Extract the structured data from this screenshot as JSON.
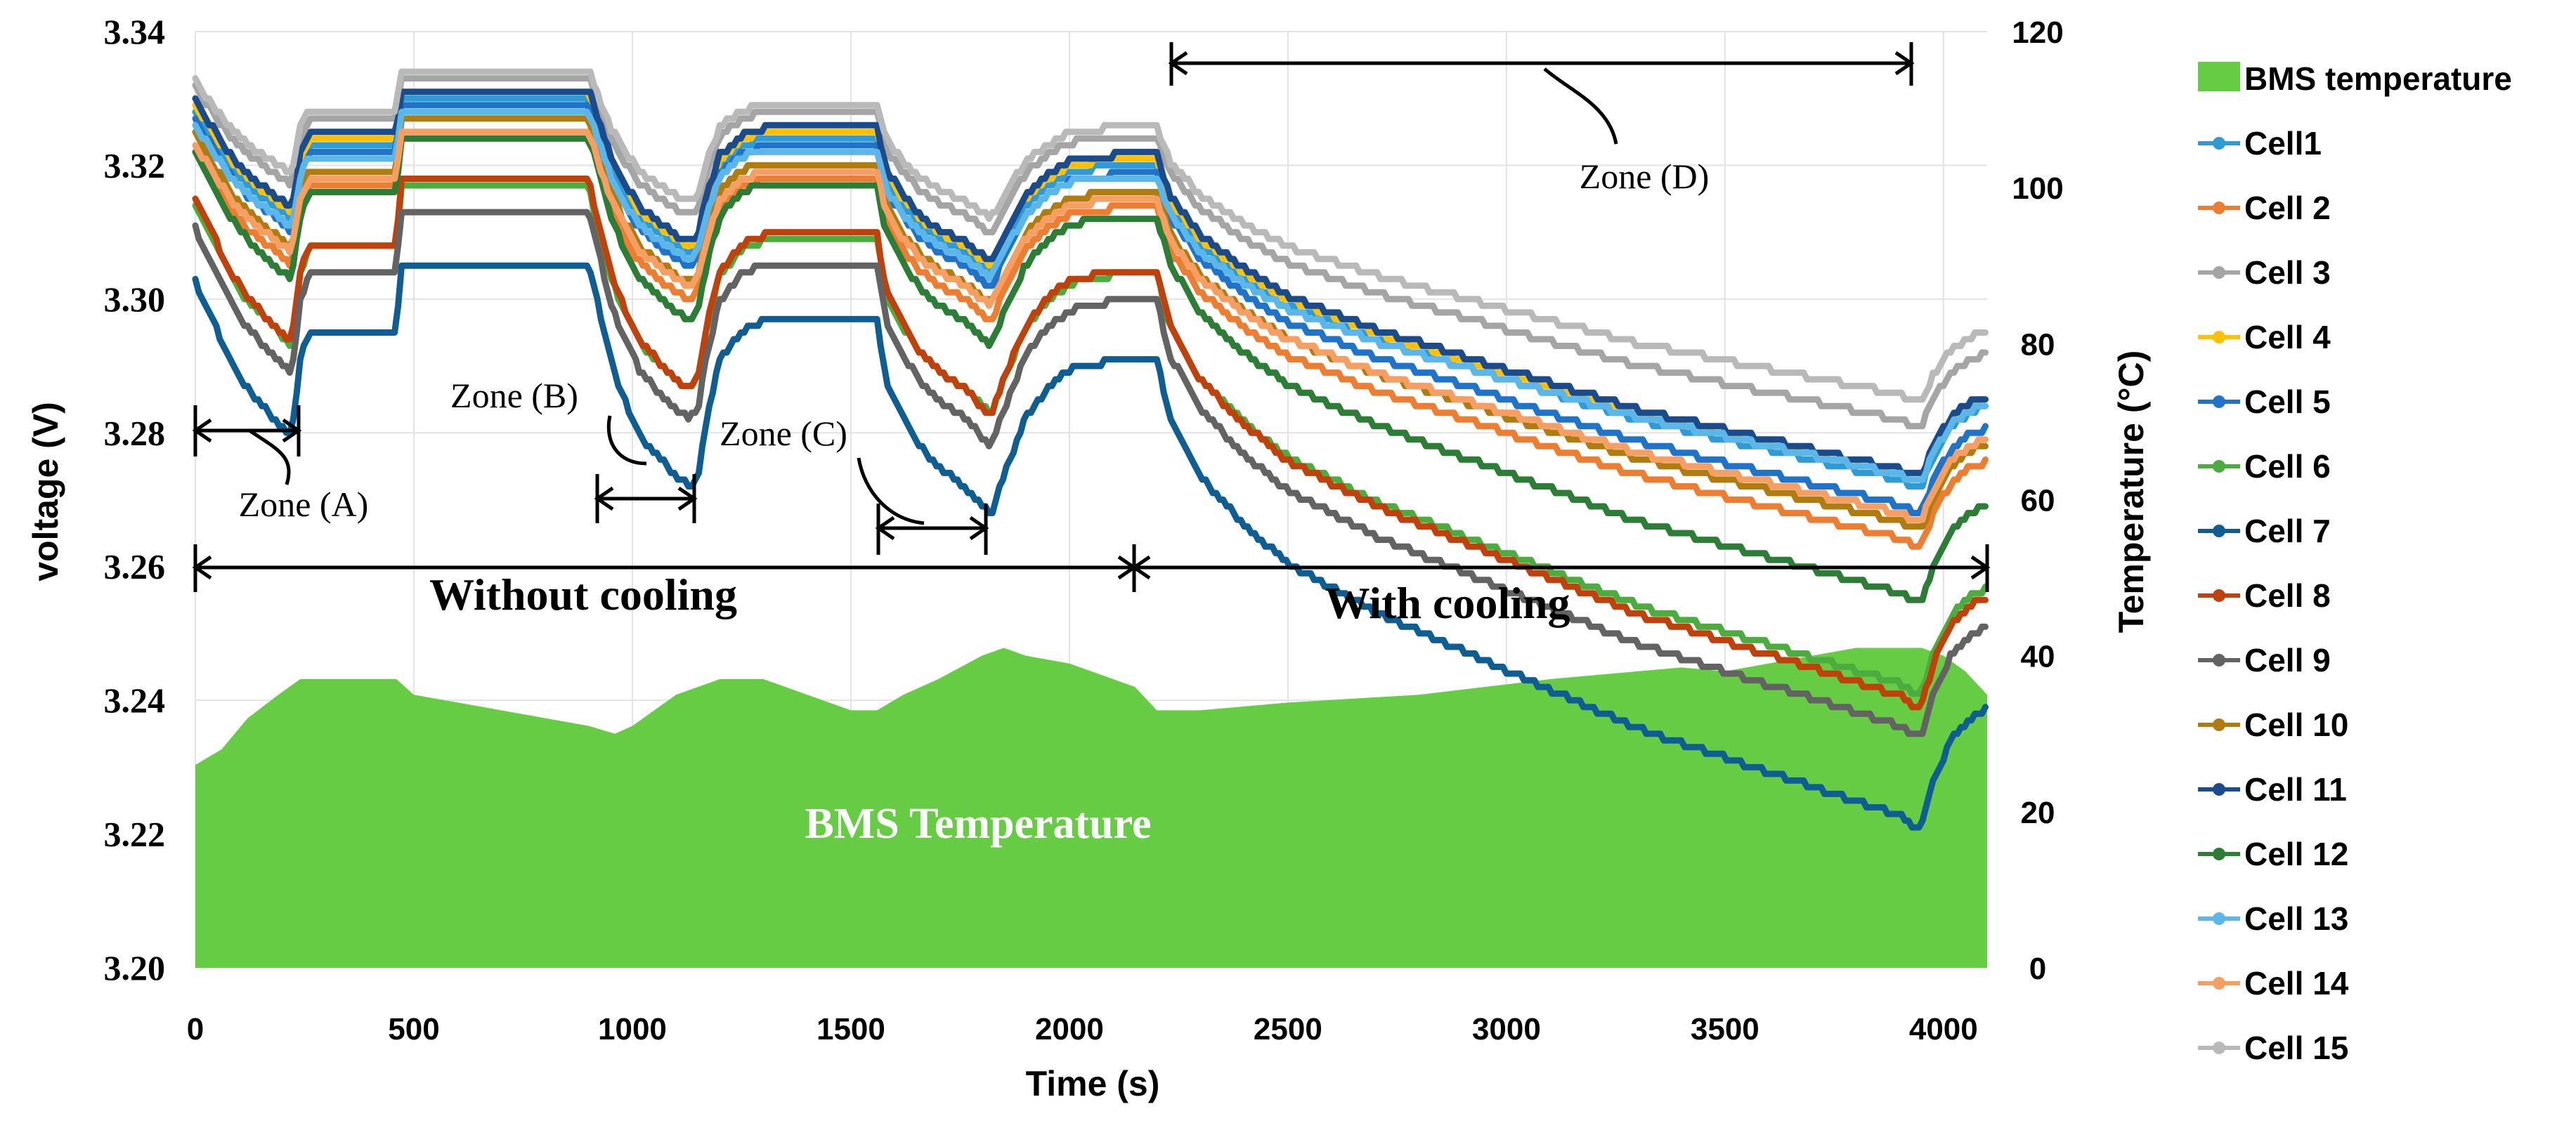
{
  "chart_data": {
    "type": "line",
    "title": "",
    "xlabel": "Time (s)",
    "ylabel": "voltage (V)",
    "y2label": "Temperature (°C)",
    "xlim": [
      0,
      4100
    ],
    "ylim": [
      3.2,
      3.34
    ],
    "y2lim": [
      0,
      120
    ],
    "xticks": [
      "0",
      "500",
      "1000",
      "1500",
      "2000",
      "2500",
      "3000",
      "3500",
      "4000"
    ],
    "yticks": [
      "3.20",
      "3.22",
      "3.24",
      "3.26",
      "3.28",
      "3.30",
      "3.32",
      "3.34"
    ],
    "y2ticks": [
      "0",
      "20",
      "40",
      "60",
      "80",
      "100",
      "120"
    ],
    "legend_position": "right",
    "annotations": {
      "zone_a": "Zone (A)",
      "zone_b": "Zone (B)",
      "zone_c": "Zone (C)",
      "zone_d": "Zone (D)",
      "without_cooling": "Without cooling",
      "with_cooling": "With cooling",
      "bms_area_label": "BMS Temperature"
    },
    "temperature": {
      "name": "BMS temperature",
      "color": "#66cc44",
      "x": [
        0,
        60,
        120,
        190,
        240,
        460,
        500,
        700,
        900,
        960,
        1000,
        1100,
        1200,
        1300,
        1400,
        1500,
        1560,
        1620,
        1700,
        1800,
        1850,
        1900,
        2000,
        2100,
        2150,
        2200,
        2250,
        2300,
        2500,
        2800,
        3100,
        3300,
        3400,
        3500,
        3600,
        3700,
        3800,
        3900,
        3950,
        4000,
        4050,
        4100
      ],
      "values": [
        26,
        28,
        32,
        35,
        37,
        37,
        35,
        33,
        31,
        30,
        31,
        35,
        37,
        37,
        35,
        33,
        33,
        35,
        37,
        40,
        41,
        40,
        39,
        37,
        36,
        33,
        33,
        33,
        34,
        35,
        37,
        38,
        38.5,
        38,
        39,
        40,
        41,
        41,
        41,
        40,
        38,
        35
      ]
    },
    "series": [
      {
        "name": "Cell1",
        "color": "#2e9bd6",
        "offset": 0.002,
        "drop": 1.0
      },
      {
        "name": "Cell 2",
        "color": "#ed7d31",
        "offset": -0.004,
        "drop": 1.05
      },
      {
        "name": "Cell 3",
        "color": "#a5a5a5",
        "offset": 0.0055,
        "drop": 0.9
      },
      {
        "name": "Cell 4",
        "color": "#ffc000",
        "offset": 0.003,
        "drop": 1.0
      },
      {
        "name": "Cell 5",
        "color": "#1f74c9",
        "offset": 0.001,
        "drop": 1.05
      },
      {
        "name": "Cell 6",
        "color": "#4aad3e",
        "offset": -0.012,
        "drop": 1.3
      },
      {
        "name": "Cell 7",
        "color": "#0f5e93",
        "offset": -0.0235,
        "drop": 1.45
      },
      {
        "name": "Cell 8",
        "color": "#c0410c",
        "offset": -0.011,
        "drop": 1.35
      },
      {
        "name": "Cell 9",
        "color": "#636363",
        "offset": -0.0155,
        "drop": 1.35
      },
      {
        "name": "Cell 10",
        "color": "#b07c10",
        "offset": -0.0015,
        "drop": 1.05
      },
      {
        "name": "Cell 11",
        "color": "#1a4b8c",
        "offset": 0.0035,
        "drop": 1.0
      },
      {
        "name": "Cell 12",
        "color": "#2c7d36",
        "offset": -0.004,
        "drop": 1.2
      },
      {
        "name": "Cell 13",
        "color": "#5bb6ea",
        "offset": 0.0,
        "drop": 0.95
      },
      {
        "name": "Cell 14",
        "color": "#f79e62",
        "offset": -0.003,
        "drop": 1.0
      },
      {
        "name": "Cell 15",
        "color": "#b9b9b9",
        "offset": 0.0065,
        "drop": 0.85
      }
    ],
    "profile_note": "Shared voltage profile (V) for a reference cell; each cell = ref + offset, excursions scaled by drop.",
    "reference_profile": {
      "x": [
        0,
        40,
        80,
        120,
        160,
        200,
        220,
        240,
        260,
        300,
        400,
        460,
        470,
        500,
        600,
        700,
        800,
        900,
        950,
        980,
        1020,
        1060,
        1100,
        1130,
        1150,
        1170,
        1200,
        1250,
        1300,
        1400,
        1500,
        1560,
        1580,
        1620,
        1660,
        1700,
        1760,
        1800,
        1820,
        1850,
        1900,
        1950,
        2000,
        2100,
        2180,
        2200,
        2230,
        2300,
        2400,
        2500,
        2700,
        2900,
        3100,
        3300,
        3500,
        3700,
        3900,
        3930,
        3950,
        3980,
        4020,
        4060,
        4100
      ],
      "values": [
        3.326,
        3.322,
        3.318,
        3.315,
        3.313,
        3.311,
        3.31,
        3.318,
        3.321,
        3.321,
        3.321,
        3.321,
        3.328,
        3.328,
        3.328,
        3.328,
        3.328,
        3.328,
        3.318,
        3.314,
        3.31,
        3.308,
        3.306,
        3.305,
        3.306,
        3.312,
        3.318,
        3.321,
        3.322,
        3.322,
        3.322,
        3.322,
        3.316,
        3.312,
        3.309,
        3.307,
        3.305,
        3.303,
        3.302,
        3.306,
        3.312,
        3.315,
        3.317,
        3.318,
        3.318,
        3.318,
        3.312,
        3.306,
        3.301,
        3.297,
        3.292,
        3.288,
        3.284,
        3.28,
        3.277,
        3.274,
        3.271,
        3.27,
        3.27,
        3.275,
        3.279,
        3.281,
        3.282
      ]
    }
  }
}
